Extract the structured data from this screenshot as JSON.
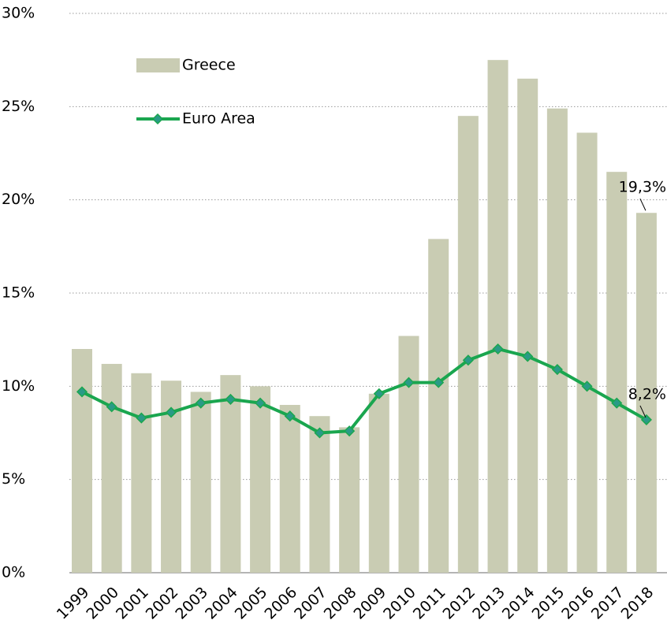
{
  "chart_data": {
    "type": "bar+line",
    "categories": [
      "1999",
      "2000",
      "2001",
      "2002",
      "2003",
      "2004",
      "2005",
      "2006",
      "2007",
      "2008",
      "2009",
      "2010",
      "2011",
      "2012",
      "2013",
      "2014",
      "2015",
      "2016",
      "2017",
      "2018"
    ],
    "series": [
      {
        "name": "Greece",
        "type": "bar",
        "color": "#c9ccb3",
        "values": [
          12.0,
          11.2,
          10.7,
          10.3,
          9.7,
          10.6,
          10.0,
          9.0,
          8.4,
          7.8,
          9.6,
          12.7,
          17.9,
          24.5,
          27.5,
          26.5,
          24.9,
          23.6,
          21.5,
          19.3
        ],
        "value_labels": [
          null,
          null,
          null,
          null,
          null,
          null,
          null,
          null,
          null,
          null,
          null,
          null,
          null,
          null,
          null,
          null,
          null,
          null,
          null,
          "19,3%"
        ]
      },
      {
        "name": "Euro Area",
        "type": "line",
        "color": "#1aa64f",
        "marker_color": "#2a9a86",
        "values": [
          9.7,
          8.9,
          8.3,
          8.6,
          9.1,
          9.3,
          9.1,
          8.4,
          7.5,
          7.6,
          9.6,
          10.2,
          10.2,
          11.4,
          12.0,
          11.6,
          10.9,
          10.0,
          9.1,
          8.2
        ],
        "value_labels": [
          null,
          null,
          null,
          null,
          null,
          null,
          null,
          null,
          null,
          null,
          null,
          null,
          null,
          null,
          null,
          null,
          null,
          null,
          null,
          "8,2%"
        ]
      }
    ],
    "ylim": [
      0,
      30
    ],
    "yticks": [
      {
        "value": 0,
        "label": "0%"
      },
      {
        "value": 5,
        "label": "5%"
      },
      {
        "value": 10,
        "label": "10%"
      },
      {
        "value": 15,
        "label": "15%"
      },
      {
        "value": 20,
        "label": "20%"
      },
      {
        "value": 25,
        "label": "25%"
      },
      {
        "value": 30,
        "label": "30%"
      }
    ],
    "grid": true
  }
}
